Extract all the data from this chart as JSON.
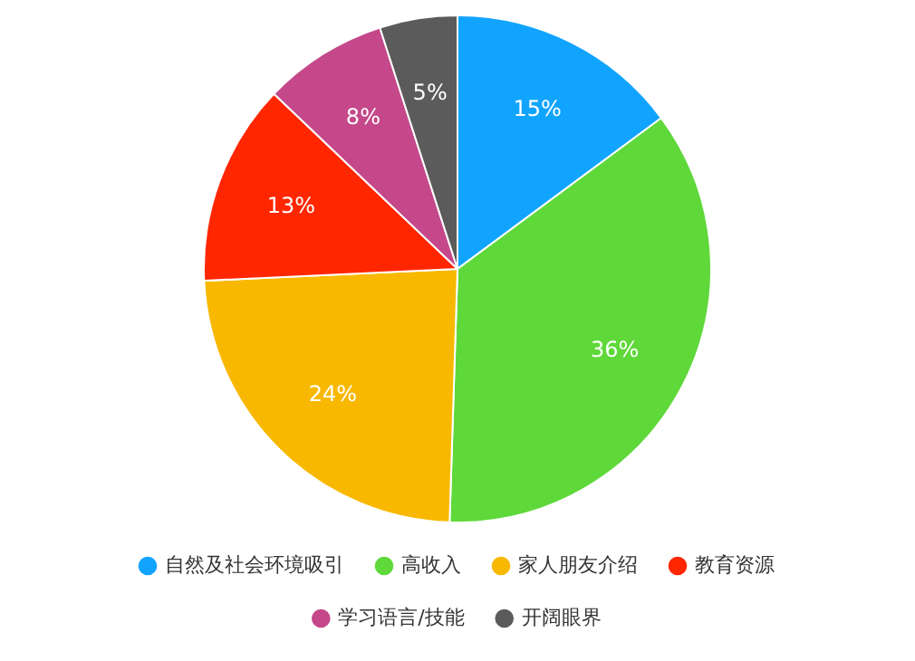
{
  "chart_data": {
    "type": "pie",
    "categories": [
      "自然及社会环境吸引",
      "高收入",
      "家人朋友介绍",
      "教育资源",
      "学习语言/技能",
      "开阔眼界"
    ],
    "values": [
      15,
      36,
      24,
      13,
      8,
      5
    ],
    "colors": [
      "#11a4ff",
      "#5fd83a",
      "#f8b800",
      "#ff2600",
      "#c4488a",
      "#5b5b5b"
    ],
    "value_labels": [
      "15%",
      "36%",
      "24%",
      "13%",
      "8%",
      "5%"
    ],
    "legend": "bottom"
  }
}
